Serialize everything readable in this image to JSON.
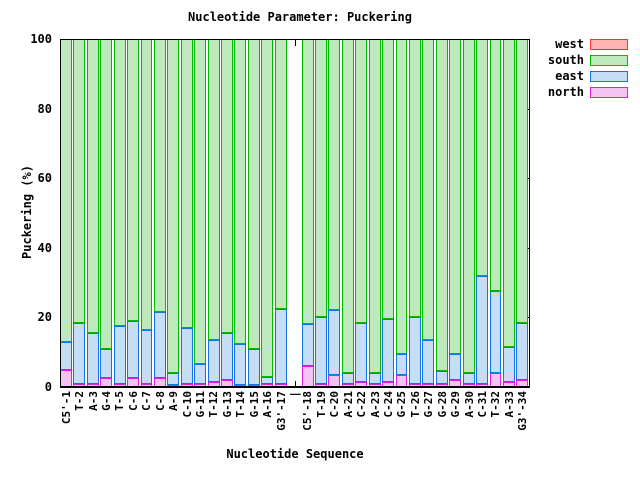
{
  "title": "Nucleotide Parameter: Puckering",
  "y_axis": {
    "label": "Puckering (%)",
    "ticks": [
      0,
      20,
      40,
      60,
      80,
      100
    ]
  },
  "x_axis": {
    "label": "Nucleotide Sequence"
  },
  "legend": {
    "position": "top-right-outside",
    "items": [
      {
        "label": "west",
        "border": "#ff3030",
        "fill": "#ffb3b3"
      },
      {
        "label": "south",
        "border": "#00bb00",
        "fill": "#bde9bd"
      },
      {
        "label": "east",
        "border": "#1173e6",
        "fill": "#c5def5"
      },
      {
        "label": "north",
        "border": "#dd22dd",
        "fill": "#f3c4f1"
      }
    ]
  },
  "chart_data": {
    "type": "bar",
    "stacked": true,
    "stack_order_bottom_to_top": [
      "north",
      "east",
      "south",
      "west"
    ],
    "title": "Nucleotide Parameter: Puckering",
    "xlabel": "Nucleotide Sequence",
    "ylabel": "Puckering (%)",
    "ylim": [
      0,
      100
    ],
    "grid": false,
    "gap_index": 17,
    "categories": [
      "C5'-1",
      "T-2",
      "A-3",
      "G-4",
      "T-5",
      "C-6",
      "C-7",
      "C-8",
      "A-9",
      "C-10",
      "G-11",
      "T-12",
      "G-13",
      "T-14",
      "G-15",
      "A-16",
      "G3'-17",
      "|",
      "C5'-18",
      "T-19",
      "C-20",
      "A-21",
      "C-22",
      "A-23",
      "C-24",
      "G-25",
      "T-26",
      "G-27",
      "G-28",
      "G-29",
      "A-30",
      "C-31",
      "T-32",
      "A-33",
      "G3'-34"
    ],
    "series": [
      {
        "name": "west",
        "values": [
          0,
          0,
          0,
          0,
          0,
          0,
          0,
          0,
          0,
          0,
          0,
          0,
          0,
          0,
          0,
          0,
          0,
          null,
          0,
          0,
          0,
          0,
          0,
          0,
          0,
          0,
          0,
          0,
          0,
          0,
          0,
          0,
          0,
          0,
          0
        ]
      },
      {
        "name": "south",
        "values": [
          87,
          81.5,
          84.5,
          89,
          82.5,
          81,
          83.5,
          78.5,
          96,
          83,
          93.5,
          86.5,
          84.5,
          87.5,
          89,
          97,
          77.5,
          null,
          82,
          80,
          78,
          96,
          81.5,
          96,
          80.5,
          90.5,
          80,
          86.5,
          95.5,
          90.5,
          96,
          68,
          72.5,
          88.5,
          81.5
        ]
      },
      {
        "name": "east",
        "values": [
          8,
          17.5,
          14.5,
          8.5,
          16.5,
          16.5,
          15.5,
          19,
          3.5,
          16,
          5.5,
          12,
          13.5,
          12,
          10.5,
          2,
          21.5,
          null,
          12,
          19,
          18.5,
          3,
          17,
          3,
          18,
          6,
          19,
          12.5,
          3.5,
          7.5,
          3,
          31,
          23.5,
          10,
          16.5
        ]
      },
      {
        "name": "north",
        "values": [
          5,
          1,
          1,
          2.5,
          1,
          2.5,
          1,
          2.5,
          0.5,
          1,
          1,
          1.5,
          2,
          0.5,
          0.5,
          1,
          1,
          null,
          6,
          1,
          3.5,
          1,
          1.5,
          1,
          1.5,
          3.5,
          1,
          1,
          1,
          2,
          1,
          1,
          4,
          1.5,
          2
        ]
      }
    ]
  }
}
